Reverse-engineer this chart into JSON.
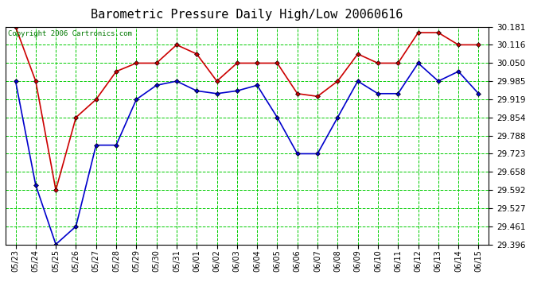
{
  "title": "Barometric Pressure Daily High/Low 20060616",
  "copyright": "Copyright 2006 Cartronics.com",
  "background_color": "#ffffff",
  "plot_background": "#ffffff",
  "grid_color": "#00cc00",
  "dates": [
    "05/23",
    "05/24",
    "05/25",
    "05/26",
    "05/27",
    "05/28",
    "05/29",
    "05/30",
    "05/31",
    "06/01",
    "06/02",
    "06/03",
    "06/04",
    "06/05",
    "06/06",
    "06/07",
    "06/08",
    "06/09",
    "06/10",
    "06/11",
    "06/12",
    "06/13",
    "06/14",
    "06/15"
  ],
  "high_values": [
    30.181,
    29.985,
    29.592,
    29.854,
    29.919,
    30.02,
    30.05,
    30.05,
    30.116,
    30.083,
    29.985,
    30.05,
    30.05,
    30.05,
    29.94,
    29.93,
    29.985,
    30.083,
    30.05,
    30.05,
    30.16,
    30.16,
    30.116,
    30.116
  ],
  "low_values": [
    29.985,
    29.61,
    29.396,
    29.461,
    29.754,
    29.754,
    29.919,
    29.97,
    29.985,
    29.95,
    29.94,
    29.95,
    29.97,
    29.854,
    29.723,
    29.723,
    29.854,
    29.985,
    29.94,
    29.94,
    30.05,
    29.985,
    30.02,
    29.94
  ],
  "high_color": "#cc0000",
  "low_color": "#0000cc",
  "ylim_min": 29.396,
  "ylim_max": 30.181,
  "yticks": [
    29.396,
    29.461,
    29.527,
    29.592,
    29.658,
    29.723,
    29.788,
    29.854,
    29.919,
    29.985,
    30.05,
    30.116,
    30.181
  ],
  "title_fontsize": 11,
  "marker": "D",
  "marker_size": 3,
  "line_width": 1.2
}
